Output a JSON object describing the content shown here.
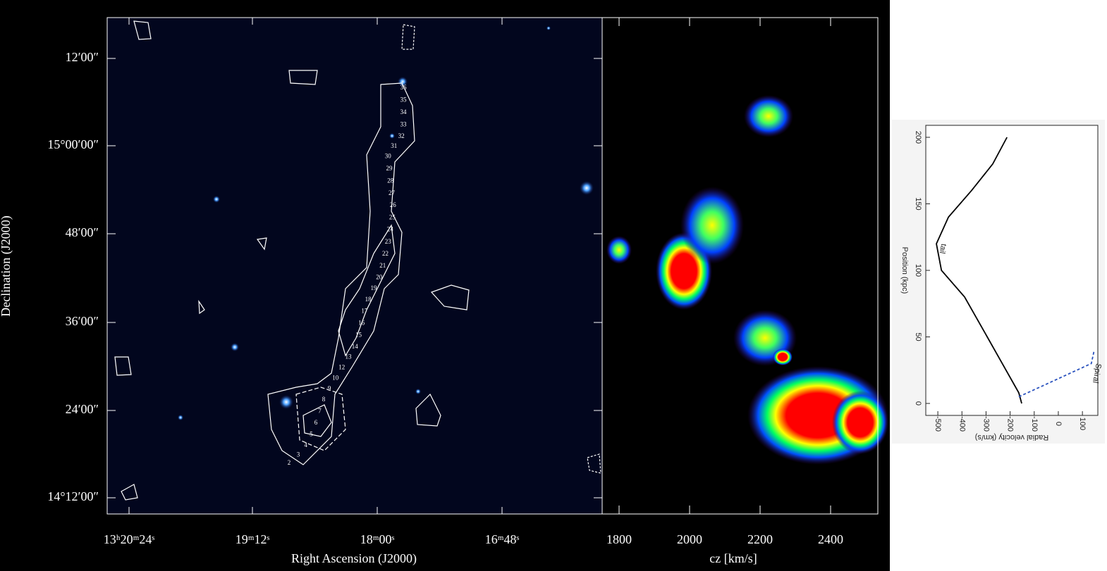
{
  "chart_data": [
    {
      "type": "image",
      "xlabel": "Right Ascension (J2000)",
      "ylabel": "Declination (J2000)",
      "xtick_labels": [
        "13ʰ20ᵐ24ˢ",
        "19ᵐ12ˢ",
        "18ᵐ00ˢ",
        "16ᵐ48ˢ"
      ],
      "ytick_labels": [
        "12′00″",
        "15°00′00″",
        "48′00″",
        "36′00″",
        "24′00″",
        "14°12′00″"
      ],
      "annotations": [
        "36",
        "35",
        "34",
        "33",
        "32",
        "31",
        "30",
        "29",
        "28",
        "27",
        "26",
        "25",
        "24",
        "23",
        "22",
        "21",
        "20",
        "19",
        "18",
        "17",
        "16",
        "15",
        "14",
        "13",
        "12",
        "10",
        "9",
        "8",
        "7",
        "6",
        "5",
        "4",
        "3",
        "2"
      ]
    },
    {
      "type": "heatmap",
      "xlabel": "cz [km/s]",
      "xlim": [
        1752,
        2534
      ],
      "xticks": [
        1800,
        2000,
        2200,
        2400
      ]
    },
    {
      "type": "line",
      "xlabel": "Position (kpc)",
      "ylabel": "Radial velocity (km/s)",
      "xlim": [
        -9,
        209
      ],
      "ylim": [
        -550,
        164
      ],
      "xticks": [
        0,
        50,
        100,
        150,
        200
      ],
      "yticks": [
        -500,
        -400,
        -300,
        -200,
        -100,
        0,
        100
      ],
      "series": [
        {
          "name": "tail",
          "color": "#000000",
          "style": "solid",
          "x": [
            0,
            8,
            50,
            80,
            100,
            120,
            140,
            160,
            180,
            200
          ],
          "values": [
            -152,
            -164,
            -295,
            -389,
            -485,
            -506,
            -456,
            -360,
            -272,
            -213
          ]
        },
        {
          "name": "Spiral",
          "color": "#2a52be",
          "style": "dashed",
          "x": [
            5,
            30,
            40
          ],
          "values": [
            -164,
            137,
            149
          ]
        }
      ]
    }
  ]
}
